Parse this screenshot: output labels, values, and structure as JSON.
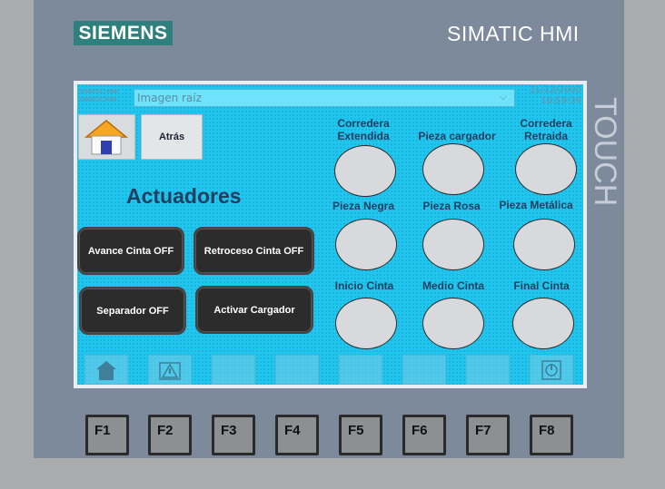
{
  "device": {
    "brand": "SIEMENS",
    "model": "SIMATIC HMI",
    "side_label": "TOUCH"
  },
  "topbar": {
    "sys_label_line1": "SIMATIC HMI",
    "sys_label_line2": "SIMATICHMI",
    "image_select_value": "Imagen raíz",
    "date": "31/12/2000",
    "time": "10:59:39"
  },
  "nav": {
    "home_icon": "house-icon",
    "back_label": "Atrás"
  },
  "title": "Actuadores",
  "actuator_buttons": [
    {
      "label": "Avance Cinta OFF"
    },
    {
      "label": "Retroceso Cinta OFF"
    },
    {
      "label": "Separador OFF"
    },
    {
      "label": "Activar Cargador"
    }
  ],
  "indicators": [
    {
      "label": "Corredera Extendida"
    },
    {
      "label": "Pieza cargador"
    },
    {
      "label": "Corredera Retraida"
    },
    {
      "label": "Pieza Negra"
    },
    {
      "label": "Pieza Rosa"
    },
    {
      "label": "Pieza Metálica"
    },
    {
      "label": "Inicio Cinta"
    },
    {
      "label": "Medio Cinta"
    },
    {
      "label": "Final Cinta"
    }
  ],
  "softkeys": [
    {
      "icon": "home-icon"
    },
    {
      "icon": "alarm-icon"
    },
    {
      "icon": ""
    },
    {
      "icon": ""
    },
    {
      "icon": ""
    },
    {
      "icon": ""
    },
    {
      "icon": ""
    },
    {
      "icon": "power-icon"
    }
  ],
  "function_keys": [
    "F1",
    "F2",
    "F3",
    "F4",
    "F5",
    "F6",
    "F7",
    "F8"
  ],
  "colors": {
    "screen_bg": "#21c6ef",
    "bezel": "#7c8a9b",
    "brand_bg": "#2f7f7f",
    "button_dark": "#2c2c2c",
    "indicator_off": "#d7d9dc"
  }
}
